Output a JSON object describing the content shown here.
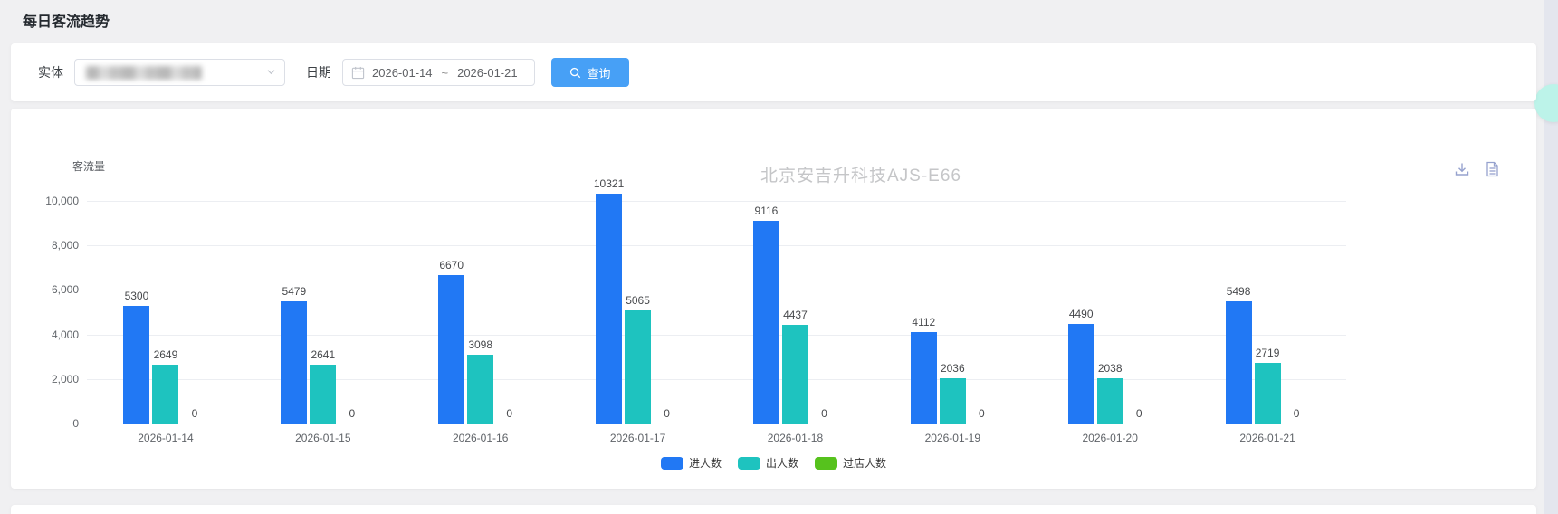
{
  "page": {
    "title": "每日客流趋势"
  },
  "filters": {
    "entity_label": "实体",
    "date_label": "日期",
    "date_start": "2026-01-14",
    "date_separator": "~",
    "date_end": "2026-01-21",
    "query_button_label": "查询"
  },
  "colors": {
    "accent_button_blue": "#47a0f6",
    "bar_blue": "#2178f4",
    "bar_teal": "#1ec3bf",
    "bar_green": "#56c21d",
    "toolbox_icon": "#96a2ce",
    "watermark_gray": "#c5c6c8",
    "mint_fab": "#bcf3e9"
  },
  "chart_data": {
    "type": "bar",
    "title": "北京安吉升科技AJS-E66",
    "ylabel": "客流量",
    "xlabel": "",
    "categories": [
      "2026-01-14",
      "2026-01-15",
      "2026-01-16",
      "2026-01-17",
      "2026-01-18",
      "2026-01-19",
      "2026-01-20",
      "2026-01-21"
    ],
    "series": [
      {
        "name": "进人数",
        "color": "#2178f4",
        "values": [
          5300,
          5479,
          6670,
          10321,
          9116,
          4112,
          4490,
          5498
        ]
      },
      {
        "name": "出人数",
        "color": "#1ec3bf",
        "values": [
          2649,
          2641,
          3098,
          5065,
          4437,
          2036,
          2038,
          2719
        ]
      },
      {
        "name": "过店人数",
        "color": "#56c21d",
        "values": [
          0,
          0,
          0,
          0,
          0,
          0,
          0,
          0
        ]
      }
    ],
    "ylim": [
      0,
      10000
    ],
    "ytick_interval": 2000,
    "grid": true,
    "legend_position": "bottom",
    "value_labels": true
  }
}
